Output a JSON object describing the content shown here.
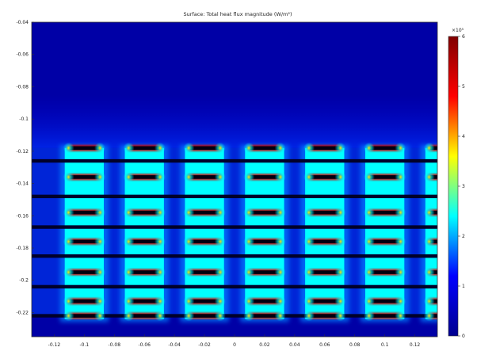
{
  "chart_data": {
    "type": "heatmap",
    "title": "Surface: Total heat flux magnitude (W/m²)",
    "xlabel": "",
    "ylabel": "",
    "xlim": [
      -0.135,
      0.135
    ],
    "ylim": [
      -0.235,
      -0.04
    ],
    "x_ticks": [
      -0.12,
      -0.1,
      -0.08,
      -0.06,
      -0.04,
      -0.02,
      0,
      0.02,
      0.04,
      0.06,
      0.08,
      0.1,
      0.12
    ],
    "x_tick_labels": [
      "-0.12",
      "-0.1",
      "-0.08",
      "-0.06",
      "-0.04",
      "-0.02",
      "0",
      "0.02",
      "0.04",
      "0.06",
      "0.08",
      "0.1",
      "0.12"
    ],
    "y_ticks": [
      -0.06,
      -0.08,
      -0.1,
      -0.12,
      -0.14,
      -0.16,
      -0.18,
      -0.2,
      -0.22
    ],
    "y_tick_labels": [
      "-0.06",
      "-0.08",
      "-0.1",
      "-0.12",
      "-0.14",
      "-0.16",
      "-0.18",
      "-0.2",
      "-0.22"
    ],
    "y_tick_label_extra": {
      "value": -0.04,
      "label": "-0.04"
    },
    "colorbar": {
      "min": 0,
      "max": 6,
      "ticks": [
        0,
        1,
        2,
        3,
        4,
        5,
        6
      ],
      "tick_labels": [
        "0",
        "1",
        "2",
        "3",
        "4",
        "5",
        "6"
      ],
      "multiplier_label": "×10⁵",
      "colormap": [
        "#00008f",
        "#0000ff",
        "#00ffff",
        "#ffff00",
        "#ff0000",
        "#800000"
      ]
    },
    "field": {
      "background_value": 0.25,
      "channel_value": 2.4,
      "fin_edge_value": 5.2,
      "fin_core_value": 0.0
    },
    "channels": {
      "x_centers": [
        -0.1,
        -0.06,
        -0.02,
        0.02,
        0.06,
        0.1,
        0.14
      ],
      "half_width": 0.013,
      "y_top": -0.118,
      "y_bottom": -0.222
    },
    "separator_rows_y": [
      -0.126,
      -0.148,
      -0.167,
      -0.185,
      -0.204,
      -0.222
    ],
    "tube_rows_y": [
      -0.118,
      -0.136,
      -0.158,
      -0.176,
      -0.195,
      -0.213,
      -0.222
    ]
  }
}
